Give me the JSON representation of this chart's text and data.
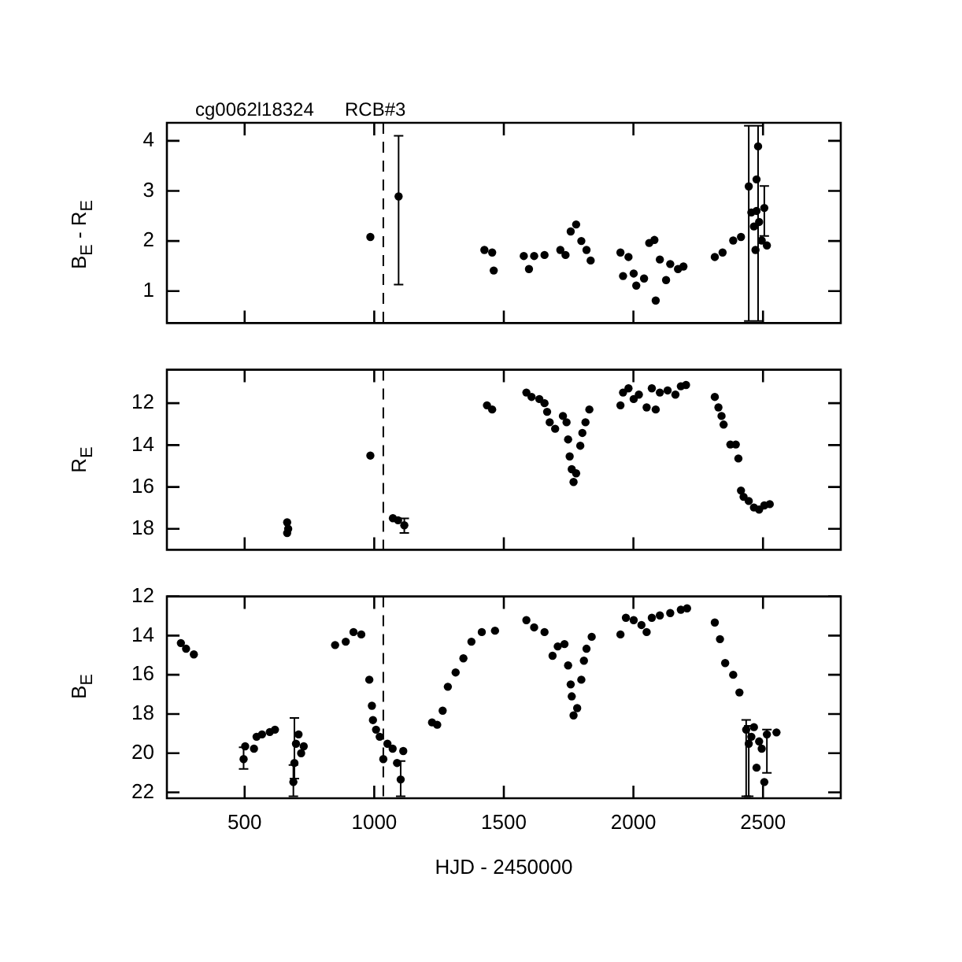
{
  "chart_data": [
    {
      "type": "scatter",
      "ylabel": "B$_{E}$ - R$_{E}$",
      "annotations": [
        "cg0062l18324",
        "RCB#3"
      ],
      "xlim": [
        200,
        2800
      ],
      "xticks": [
        500,
        1000,
        1500,
        2000,
        2500
      ],
      "ylim": [
        0.36,
        4.36
      ],
      "yticks": [
        1,
        2,
        3,
        4
      ],
      "tick_labels": "y",
      "grid": false,
      "legend": false,
      "marker": "circle",
      "ref_lines": [
        {
          "axis": "x",
          "value": 1035,
          "line_style": "dashed"
        }
      ],
      "series": [
        {
          "color": "#000000",
          "x": [
            985,
            1094,
            1425,
            1455,
            1461,
            1577,
            1597,
            1617,
            1657,
            1718,
            1738,
            1758,
            1779,
            1799,
            1819,
            1835,
            1950,
            1960,
            1981,
            2001,
            2011,
            2041,
            2061,
            2081,
            2086,
            2102,
            2126,
            2142,
            2172,
            2193,
            2314,
            2344,
            2385,
            2415,
            2445,
            2455,
            2465,
            2471,
            2475,
            2475,
            2481,
            2485,
            2495,
            2505,
            2515
          ],
          "values": [
            2.08,
            2.89,
            1.82,
            1.77,
            1.41,
            1.7,
            1.44,
            1.7,
            1.72,
            1.82,
            1.72,
            2.19,
            2.33,
            2.0,
            1.82,
            1.61,
            1.77,
            1.3,
            1.68,
            1.35,
            1.11,
            1.25,
            1.96,
            2.02,
            0.81,
            1.63,
            1.22,
            1.54,
            1.44,
            1.49,
            1.68,
            1.77,
            2.01,
            2.08,
            3.09,
            2.57,
            2.29,
            1.82,
            3.23,
            2.6,
            3.89,
            2.38,
            2.01,
            2.66,
            1.91
          ],
          "errors": [
            null,
            [
              1.13,
              4.1
            ],
            null,
            null,
            null,
            null,
            null,
            null,
            null,
            null,
            null,
            null,
            null,
            null,
            null,
            null,
            null,
            null,
            null,
            null,
            null,
            null,
            null,
            null,
            null,
            null,
            null,
            null,
            null,
            null,
            null,
            null,
            null,
            null,
            [
              0.4,
              4.3
            ],
            null,
            null,
            null,
            null,
            null,
            [
              0.4,
              4.3
            ],
            null,
            null,
            [
              2.1,
              3.1
            ],
            null
          ]
        }
      ]
    },
    {
      "type": "scatter",
      "ylabel": "R$_{E}$",
      "xlim": [
        200,
        2800
      ],
      "xticks": [
        500,
        1000,
        1500,
        2000,
        2500
      ],
      "ylim": [
        19,
        10.4
      ],
      "yticks": [
        12,
        14,
        16,
        18
      ],
      "tick_labels": "y",
      "grid": false,
      "legend": false,
      "marker": "circle",
      "ref_lines": [
        {
          "axis": "x",
          "value": 1035,
          "line_style": "dashed"
        }
      ],
      "series": [
        {
          "color": "#000000",
          "x": [
            664,
            664,
            668,
            985,
            1072,
            1092,
            1116,
            1435,
            1455,
            1587,
            1607,
            1637,
            1657,
            1667,
            1677,
            1698,
            1728,
            1742,
            1748,
            1754,
            1762,
            1769,
            1779,
            1795,
            1803,
            1815,
            1830,
            1950,
            1960,
            1981,
            2001,
            2021,
            2051,
            2071,
            2086,
            2102,
            2132,
            2162,
            2183,
            2203,
            2314,
            2328,
            2340,
            2348,
            2374,
            2395,
            2405,
            2415,
            2425,
            2445,
            2465,
            2485,
            2505,
            2526
          ],
          "values": [
            17.69,
            18.2,
            18.0,
            14.5,
            17.49,
            17.59,
            17.83,
            12.1,
            12.3,
            11.49,
            11.7,
            11.8,
            12.0,
            12.41,
            12.91,
            13.22,
            12.61,
            12.91,
            13.73,
            14.54,
            15.15,
            15.76,
            15.35,
            14.03,
            13.42,
            12.91,
            12.3,
            12.1,
            11.49,
            11.29,
            11.8,
            11.59,
            12.2,
            11.29,
            12.3,
            11.49,
            11.39,
            11.59,
            11.19,
            11.13,
            11.7,
            12.2,
            12.61,
            13.02,
            13.97,
            13.97,
            14.64,
            16.17,
            16.47,
            16.67,
            16.98,
            17.08,
            16.88,
            16.82
          ],
          "errors": [
            null,
            null,
            null,
            null,
            null,
            null,
            [
              17.5,
              18.2
            ],
            null,
            null,
            null,
            null,
            null,
            null,
            null,
            null,
            null,
            null,
            null,
            null,
            null,
            null,
            null,
            null,
            null,
            null,
            null,
            null,
            null,
            null,
            null,
            null,
            null,
            null,
            null,
            null,
            null,
            null,
            null,
            null,
            null,
            null,
            null,
            null,
            null,
            null,
            null,
            null,
            null,
            null,
            null,
            null,
            null,
            null,
            null
          ]
        }
      ]
    },
    {
      "type": "scatter",
      "ylabel": "B$_{E}$",
      "xlabel": "HJD - 2450000",
      "xlim": [
        200,
        2800
      ],
      "xticks": [
        500,
        1000,
        1500,
        2000,
        2500
      ],
      "ylim": [
        22.3,
        12
      ],
      "yticks": [
        12,
        14,
        16,
        18,
        20,
        22
      ],
      "grid": false,
      "legend": false,
      "marker": "circle",
      "ref_lines": [
        {
          "axis": "x",
          "value": 1035,
          "line_style": "dashed"
        }
      ],
      "series": [
        {
          "color": "#000000",
          "x": [
            254,
            274,
            304,
            496,
            502,
            536,
            546,
            567,
            597,
            617,
            688,
            692,
            698,
            708,
            718,
            728,
            849,
            890,
            920,
            950,
            981,
            991,
            995,
            1007,
            1021,
            1035,
            1051,
            1071,
            1088,
            1102,
            1112,
            1223,
            1243,
            1264,
            1284,
            1314,
            1344,
            1375,
            1415,
            1466,
            1587,
            1617,
            1657,
            1688,
            1708,
            1734,
            1748,
            1758,
            1762,
            1769,
            1783,
            1799,
            1809,
            1819,
            1839,
            1950,
            1971,
            2001,
            2031,
            2051,
            2071,
            2102,
            2142,
            2183,
            2207,
            2314,
            2334,
            2354,
            2385,
            2409,
            2435,
            2445,
            2455,
            2465,
            2475,
            2485,
            2495,
            2505,
            2515,
            2552
          ],
          "values": [
            14.38,
            14.67,
            14.96,
            20.3,
            19.65,
            19.77,
            19.16,
            19.04,
            18.92,
            18.8,
            21.47,
            20.5,
            19.52,
            19.04,
            20.0,
            19.65,
            14.48,
            14.31,
            13.82,
            13.94,
            16.25,
            17.58,
            18.31,
            18.8,
            19.16,
            20.3,
            19.52,
            19.77,
            20.5,
            21.34,
            19.89,
            18.43,
            18.55,
            17.83,
            16.61,
            15.88,
            15.16,
            14.31,
            13.82,
            13.75,
            13.21,
            13.58,
            13.82,
            15.03,
            14.55,
            14.43,
            15.52,
            16.49,
            17.1,
            18.07,
            17.7,
            16.25,
            15.28,
            14.67,
            14.06,
            13.94,
            13.09,
            13.21,
            13.46,
            13.82,
            13.09,
            12.97,
            12.85,
            12.68,
            12.61,
            13.33,
            14.18,
            15.4,
            16.0,
            16.9,
            18.8,
            19.52,
            19.16,
            18.67,
            20.74,
            19.4,
            19.77,
            21.47,
            19.04,
            18.94
          ],
          "errors": [
            null,
            null,
            null,
            [
              19.7,
              20.8
            ],
            null,
            null,
            null,
            null,
            null,
            null,
            [
              20.6,
              22.2
            ],
            [
              18.2,
              21.3
            ],
            null,
            null,
            null,
            null,
            null,
            null,
            null,
            null,
            null,
            null,
            null,
            null,
            null,
            null,
            null,
            null,
            null,
            [
              20.4,
              22.2
            ],
            null,
            null,
            null,
            null,
            null,
            null,
            null,
            null,
            null,
            null,
            null,
            null,
            null,
            null,
            null,
            null,
            null,
            null,
            null,
            null,
            null,
            null,
            null,
            null,
            null,
            null,
            null,
            null,
            null,
            null,
            null,
            null,
            null,
            null,
            null,
            null,
            null,
            null,
            null,
            null,
            [
              18.3,
              22.2
            ],
            [
              18.6,
              22.2
            ],
            null,
            null,
            null,
            null,
            null,
            null,
            [
              18.8,
              21.0
            ],
            null
          ]
        }
      ]
    }
  ]
}
